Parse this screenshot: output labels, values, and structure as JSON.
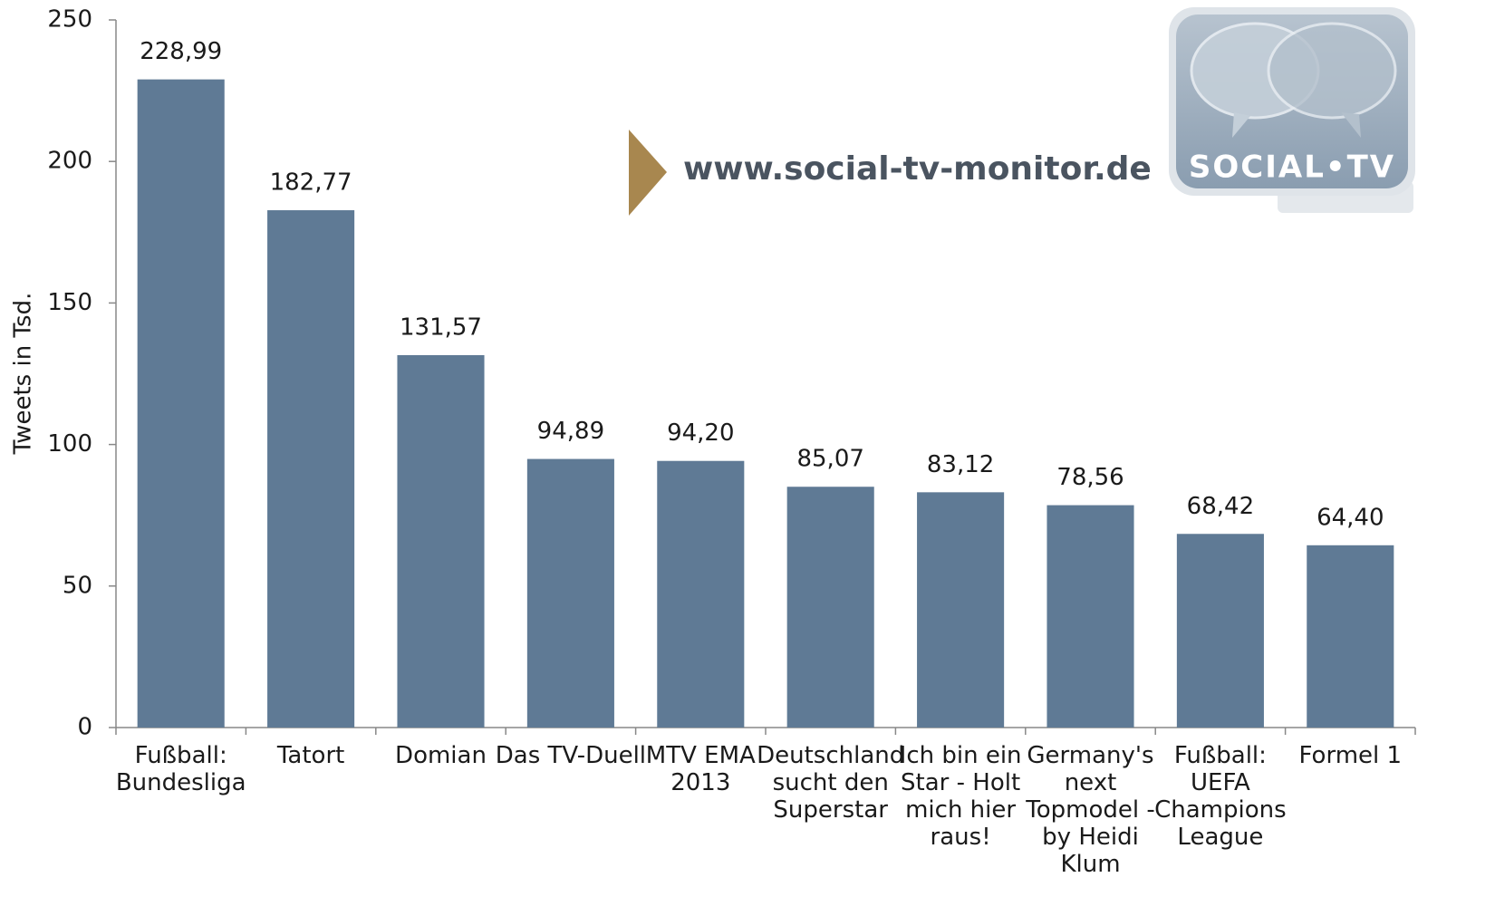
{
  "chart_data": {
    "type": "bar",
    "y_label": "Tweets in Tsd.",
    "categories": [
      "Fußball:\nBundesliga",
      "Tatort",
      "Domian",
      "Das TV-Duell",
      "MTV EMA\n2013",
      "Deutschland\nsucht den\nSuperstar",
      "Ich bin ein\nStar - Holt\nmich hier\nraus!",
      "Germany's\nnext\nTopmodel -\nby Heidi\nKlum",
      "Fußball:\nUEFA\nChampions\nLeague",
      "Formel 1"
    ],
    "values": [
      228.99,
      182.77,
      131.57,
      94.89,
      94.2,
      85.07,
      83.12,
      78.56,
      68.42,
      64.4
    ],
    "value_labels": [
      "228,99",
      "182,77",
      "131,57",
      "94,89",
      "94,20",
      "85,07",
      "83,12",
      "78,56",
      "68,42",
      "64,40"
    ],
    "color": "#5f7a95",
    "ylim": [
      0,
      250
    ],
    "yticks": [
      0,
      50,
      100,
      150,
      200,
      250
    ],
    "grid": false,
    "annotations": [
      "www.social-tv-monitor.de",
      "SOCIAL•TV"
    ]
  }
}
